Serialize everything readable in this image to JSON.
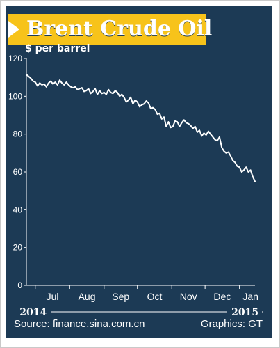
{
  "chart_data": {
    "type": "line",
    "title": "Brent Crude Oil",
    "ylabel": "$ per barrel",
    "ylim": [
      0,
      120
    ],
    "yticks": [
      0,
      20,
      40,
      60,
      80,
      100,
      120
    ],
    "xlim": [
      "2014-06-23",
      "2015-01-15"
    ],
    "months": [
      {
        "label": "Jul",
        "date": "2014-07-01"
      },
      {
        "label": "Aug",
        "date": "2014-08-01"
      },
      {
        "label": "Sep",
        "date": "2014-09-01"
      },
      {
        "label": "Oct",
        "date": "2014-10-01"
      },
      {
        "label": "Nov",
        "date": "2014-11-01"
      },
      {
        "label": "Dec",
        "date": "2014-12-01"
      },
      {
        "label": "Jan",
        "date": "2015-01-01"
      }
    ],
    "years": [
      {
        "label": "2014",
        "date": "2014-07-01"
      },
      {
        "label": "2015",
        "date": "2015-01-01"
      }
    ],
    "grid": false,
    "line_color": "#ffffff",
    "series": [
      {
        "x": [
          "2014-06-23",
          "2014-06-25",
          "2014-06-27",
          "2014-06-29",
          "2014-07-01",
          "2014-07-03",
          "2014-07-05",
          "2014-07-07",
          "2014-07-09",
          "2014-07-11",
          "2014-07-13",
          "2014-07-15",
          "2014-07-17",
          "2014-07-19",
          "2014-07-21",
          "2014-07-23",
          "2014-07-25",
          "2014-07-27",
          "2014-07-29",
          "2014-07-31",
          "2014-08-02",
          "2014-08-04",
          "2014-08-06",
          "2014-08-08",
          "2014-08-10",
          "2014-08-12",
          "2014-08-14",
          "2014-08-16",
          "2014-08-18",
          "2014-08-20",
          "2014-08-22",
          "2014-08-24",
          "2014-08-26",
          "2014-08-28",
          "2014-08-30",
          "2014-09-01",
          "2014-09-03",
          "2014-09-05",
          "2014-09-07",
          "2014-09-09",
          "2014-09-11",
          "2014-09-13",
          "2014-09-15",
          "2014-09-17",
          "2014-09-19",
          "2014-09-21",
          "2014-09-23",
          "2014-09-25",
          "2014-09-27",
          "2014-09-29",
          "2014-10-01",
          "2014-10-03",
          "2014-10-05",
          "2014-10-07",
          "2014-10-09",
          "2014-10-11",
          "2014-10-13",
          "2014-10-15",
          "2014-10-17",
          "2014-10-19",
          "2014-10-21",
          "2014-10-23",
          "2014-10-25",
          "2014-10-27",
          "2014-10-29",
          "2014-10-31",
          "2014-11-02",
          "2014-11-04",
          "2014-11-06",
          "2014-11-08",
          "2014-11-10",
          "2014-11-12",
          "2014-11-14",
          "2014-11-16",
          "2014-11-18",
          "2014-11-20",
          "2014-11-22",
          "2014-11-24",
          "2014-11-26",
          "2014-11-28",
          "2014-11-30",
          "2014-12-02",
          "2014-12-04",
          "2014-12-06",
          "2014-12-08",
          "2014-12-10",
          "2014-12-12",
          "2014-12-14",
          "2014-12-16",
          "2014-12-18",
          "2014-12-20",
          "2014-12-22",
          "2014-12-24",
          "2014-12-26",
          "2014-12-28",
          "2014-12-30",
          "2015-01-01",
          "2015-01-03",
          "2015-01-05",
          "2015-01-07",
          "2015-01-09",
          "2015-01-11",
          "2015-01-13",
          "2015-01-15"
        ],
        "y": [
          111.5,
          110.5,
          109.5,
          108.0,
          107.5,
          105.5,
          107.0,
          106.0,
          106.5,
          105.0,
          107.0,
          108.0,
          106.5,
          107.5,
          106.0,
          108.5,
          107.0,
          106.0,
          107.5,
          106.0,
          105.0,
          104.5,
          105.0,
          103.5,
          104.0,
          104.5,
          102.5,
          103.0,
          104.0,
          101.5,
          102.5,
          104.0,
          101.0,
          103.0,
          101.5,
          102.0,
          101.0,
          103.5,
          102.0,
          101.5,
          103.0,
          102.0,
          100.0,
          101.0,
          99.5,
          97.0,
          98.0,
          99.5,
          96.0,
          98.0,
          97.0,
          94.5,
          95.5,
          96.0,
          97.5,
          96.5,
          93.5,
          94.0,
          93.0,
          90.5,
          91.0,
          88.0,
          89.0,
          84.0,
          86.5,
          83.5,
          84.0,
          87.0,
          86.5,
          84.0,
          86.0,
          87.5,
          86.0,
          85.5,
          84.5,
          83.0,
          84.0,
          81.0,
          82.0,
          79.0,
          80.5,
          79.5,
          81.5,
          80.0,
          78.5,
          77.0,
          76.5,
          78.5,
          73.0,
          71.0,
          70.0,
          70.5,
          68.5,
          66.0,
          65.0,
          63.0,
          62.5,
          60.0,
          61.0,
          62.5,
          60.0,
          61.0,
          57.5,
          55.0
        ]
      }
    ]
  },
  "source_text": "Source: finance.sina.com.cn",
  "credit_text": "Graphics: GT",
  "colors": {
    "panel_background": "#1c3a55",
    "title_bar": "#f7c31a",
    "line": "#ffffff"
  }
}
